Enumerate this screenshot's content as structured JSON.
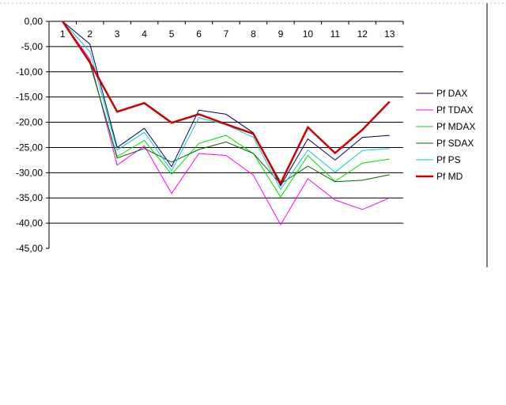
{
  "chart_data": {
    "type": "line",
    "title": "",
    "xlabel": "",
    "ylabel": "",
    "categories": [
      "1",
      "2",
      "3",
      "4",
      "5",
      "6",
      "7",
      "8",
      "9",
      "10",
      "11",
      "12",
      "13"
    ],
    "ylim": [
      -45,
      0
    ],
    "y_ticks": [
      "0,00",
      "-5,00",
      "-10,00",
      "-15,00",
      "-20,00",
      "-25,00",
      "-30,00",
      "-35,00",
      "-40,00",
      "-45,00"
    ],
    "y_tick_values": [
      0,
      -5,
      -10,
      -15,
      -20,
      -25,
      -30,
      -35,
      -40,
      -45
    ],
    "grid": true,
    "legend_position": "right",
    "series": [
      {
        "name": "Pf DAX",
        "color": "#000066",
        "values": [
          0,
          -4.5,
          -25,
          -21.2,
          -28.8,
          -17.6,
          -18.4,
          -22.1,
          -32.6,
          -23.3,
          -27.5,
          -23,
          -22.6
        ]
      },
      {
        "name": "Pf TDAX",
        "color": "#ff00ff",
        "values": [
          0,
          -7.5,
          -28.5,
          -24.7,
          -34.1,
          -26.2,
          -26.6,
          -30.5,
          -40.3,
          -31.2,
          -35.4,
          -37.3,
          -35
        ]
      },
      {
        "name": "Pf MDAX",
        "color": "#00dd00",
        "values": [
          0,
          -8.4,
          -26.8,
          -23.6,
          -30.3,
          -24.2,
          -22.6,
          -26.2,
          -34.8,
          -26.6,
          -31.7,
          -28.1,
          -27.3
        ]
      },
      {
        "name": "Pf SDAX",
        "color": "#006600",
        "values": [
          0,
          -8.2,
          -27.1,
          -25.2,
          -27.9,
          -25.4,
          -23.9,
          -26.2,
          -32.2,
          -28.7,
          -31.8,
          -31.5,
          -30.4
        ]
      },
      {
        "name": "Pf PS",
        "color": "#00cccc",
        "values": [
          0,
          -6,
          -25.5,
          -22,
          -29.6,
          -19.1,
          -20.5,
          -23,
          -33.3,
          -25.5,
          -29.9,
          -25.6,
          -25.2
        ]
      },
      {
        "name": "Pf MD",
        "color": "#cc0000",
        "values": [
          0,
          -8.1,
          -17.9,
          -16.2,
          -20.1,
          -18.4,
          -20.4,
          -22.3,
          -32.1,
          -21,
          -26.1,
          -21.5,
          -15.9
        ]
      }
    ]
  }
}
